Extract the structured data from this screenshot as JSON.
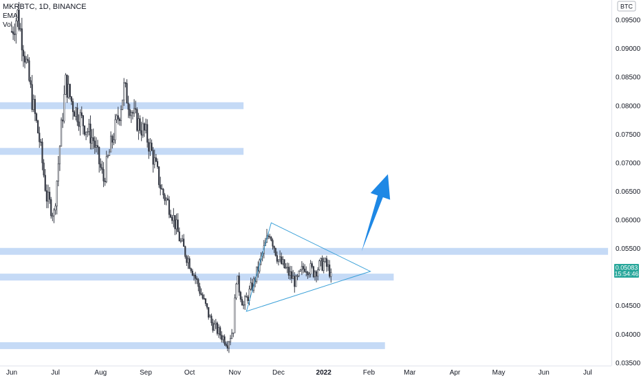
{
  "header": {
    "symbol_line": "MKRBTC, 1D, BINANCE",
    "indicator_1": "EMA",
    "indicator_2": "Vol"
  },
  "price_axis": {
    "currency": "BTC",
    "current_price": "0.05083",
    "countdown": "15:54:46",
    "current_price_color": "#26a69a"
  },
  "colors": {
    "zone": "#bbd4f5",
    "triangle": "#3aa0d8",
    "arrow": "#1e88e5",
    "up_candle": "#ffffff",
    "down_candle": "#363a45",
    "wick_up": "#363a45",
    "wick_down": "#363a45"
  },
  "chart_data": {
    "type": "candlestick",
    "title": "MKRBTC, 1D, BINANCE",
    "ylim": [
      0.0345,
      0.0985
    ],
    "y_ticks": [
      "0.09500",
      "0.09000",
      "0.08500",
      "0.08000",
      "0.07500",
      "0.07000",
      "0.06500",
      "0.06000",
      "0.05500",
      "0.04500",
      "0.04000",
      "0.03500"
    ],
    "x_labels": [
      {
        "label": "Jun",
        "date": "2021-06-01"
      },
      {
        "label": "Jul",
        "date": "2021-07-01"
      },
      {
        "label": "Aug",
        "date": "2021-08-01"
      },
      {
        "label": "Sep",
        "date": "2021-09-01"
      },
      {
        "label": "Oct",
        "date": "2021-10-01"
      },
      {
        "label": "Nov",
        "date": "2021-11-01"
      },
      {
        "label": "Dec",
        "date": "2021-12-01"
      },
      {
        "label": "2022",
        "date": "2022-01-01"
      },
      {
        "label": "Feb",
        "date": "2022-02-01"
      },
      {
        "label": "Mar",
        "date": "2022-03-01"
      },
      {
        "label": "Apr",
        "date": "2022-04-01"
      },
      {
        "label": "May",
        "date": "2022-05-01"
      },
      {
        "label": "Jun",
        "date": "2022-06-01"
      },
      {
        "label": "Jul",
        "date": "2022-07-01"
      }
    ],
    "price_path": [
      {
        "date": "2021-06-01",
        "close": 0.093
      },
      {
        "date": "2021-06-05",
        "close": 0.096
      },
      {
        "date": "2021-06-10",
        "close": 0.089
      },
      {
        "date": "2021-06-15",
        "close": 0.081
      },
      {
        "date": "2021-06-20",
        "close": 0.074
      },
      {
        "date": "2021-06-25",
        "close": 0.064
      },
      {
        "date": "2021-06-30",
        "close": 0.061
      },
      {
        "date": "2021-07-05",
        "close": 0.076
      },
      {
        "date": "2021-07-08",
        "close": 0.084
      },
      {
        "date": "2021-07-13",
        "close": 0.08
      },
      {
        "date": "2021-07-20",
        "close": 0.077
      },
      {
        "date": "2021-07-27",
        "close": 0.074
      },
      {
        "date": "2021-08-03",
        "close": 0.067
      },
      {
        "date": "2021-08-08",
        "close": 0.073
      },
      {
        "date": "2021-08-14",
        "close": 0.079
      },
      {
        "date": "2021-08-17",
        "close": 0.083
      },
      {
        "date": "2021-08-24",
        "close": 0.078
      },
      {
        "date": "2021-09-01",
        "close": 0.075
      },
      {
        "date": "2021-09-06",
        "close": 0.071
      },
      {
        "date": "2021-09-12",
        "close": 0.065
      },
      {
        "date": "2021-09-18",
        "close": 0.062
      },
      {
        "date": "2021-09-25",
        "close": 0.056
      },
      {
        "date": "2021-10-02",
        "close": 0.052
      },
      {
        "date": "2021-10-09",
        "close": 0.047
      },
      {
        "date": "2021-10-16",
        "close": 0.042
      },
      {
        "date": "2021-10-22",
        "close": 0.04
      },
      {
        "date": "2021-10-27",
        "close": 0.0385
      },
      {
        "date": "2021-10-31",
        "close": 0.041
      },
      {
        "date": "2021-11-02",
        "close": 0.05
      },
      {
        "date": "2021-11-07",
        "close": 0.045
      },
      {
        "date": "2021-11-14",
        "close": 0.049
      },
      {
        "date": "2021-11-20",
        "close": 0.054
      },
      {
        "date": "2021-11-25",
        "close": 0.058
      },
      {
        "date": "2021-12-01",
        "close": 0.053
      },
      {
        "date": "2021-12-07",
        "close": 0.051
      },
      {
        "date": "2021-12-13",
        "close": 0.049
      },
      {
        "date": "2021-12-19",
        "close": 0.052
      },
      {
        "date": "2021-12-25",
        "close": 0.051
      },
      {
        "date": "2022-01-01",
        "close": 0.0525
      },
      {
        "date": "2022-01-06",
        "close": 0.0508
      }
    ],
    "zones": [
      {
        "y": 0.08,
        "start": "2021-06-01",
        "end": "2021-11-07"
      },
      {
        "y": 0.072,
        "start": "2021-06-01",
        "end": "2021-11-07"
      },
      {
        "y": 0.0545,
        "start": "2021-06-01",
        "end": "2022-07-15"
      },
      {
        "y": 0.05,
        "start": "2021-06-01",
        "end": "2022-02-18"
      },
      {
        "y": 0.038,
        "start": "2021-06-01",
        "end": "2022-02-12"
      }
    ],
    "triangle": [
      {
        "date": "2021-11-26",
        "price": 0.0595
      },
      {
        "date": "2022-02-02",
        "price": 0.051
      },
      {
        "date": "2021-11-09",
        "price": 0.044
      }
    ],
    "arrow": {
      "from": {
        "date": "2022-01-27",
        "price": 0.0545
      },
      "to": {
        "date": "2022-02-14",
        "price": 0.068
      }
    }
  }
}
